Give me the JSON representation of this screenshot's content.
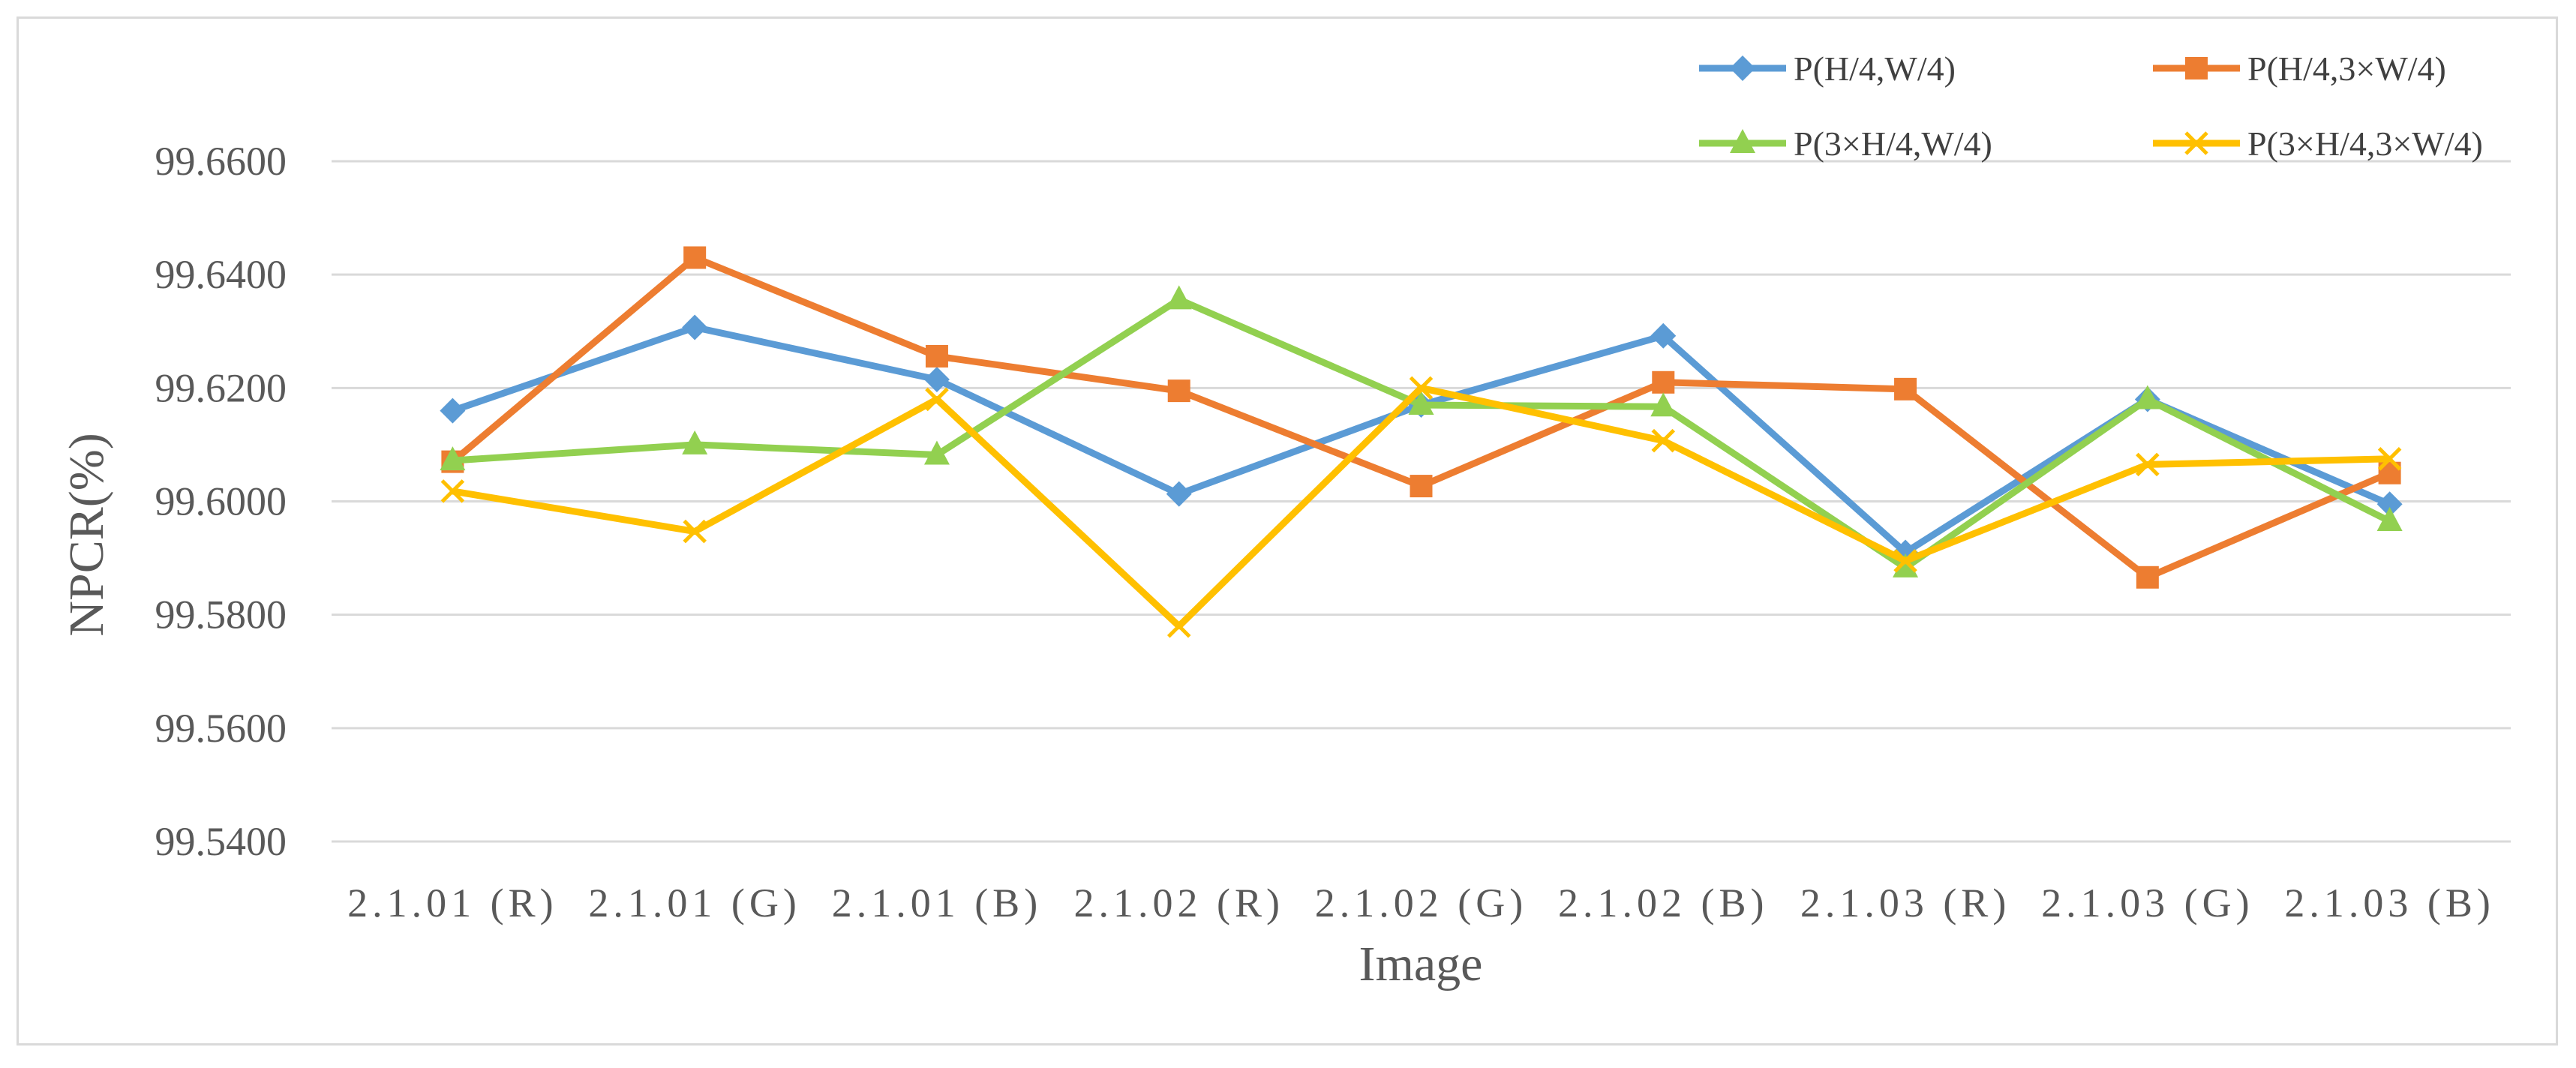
{
  "chart_data": {
    "type": "line",
    "title": "",
    "xlabel": "Image",
    "ylabel": "NPCR(%)",
    "categories": [
      "2.1.01 (R)",
      "2.1.01 (G)",
      "2.1.01 (B)",
      "2.1.02 (R)",
      "2.1.02 (G)",
      "2.1.02 (B)",
      "2.1.03 (R)",
      "2.1.03 (G)",
      "2.1.03 (B)"
    ],
    "category_tick_labels": [
      "2.1.01 (R)",
      "2.1.01 (G)",
      "2.1.01 (B)",
      "2.1.02 (R)",
      "2.1.02 (G)",
      "2.1.02 (B)",
      "2.1.03 (R)",
      "2.1.03 (G)",
      "2.1.03 (B)"
    ],
    "y_tick_labels": [
      "99.5400",
      "99.5600",
      "99.5800",
      "99.6000",
      "99.6200",
      "99.6400",
      "99.6600"
    ],
    "ylim": [
      99.54,
      99.66
    ],
    "y_tick_step": 0.02,
    "grid": true,
    "legend_placement": "top-right",
    "series": [
      {
        "name": "P(H/4,W/4)",
        "color": "#5b9bd5",
        "marker": "diamond",
        "values": [
          99.616,
          99.6307,
          99.6215,
          99.6013,
          99.617,
          99.6292,
          99.591,
          99.618,
          99.5995
        ]
      },
      {
        "name": "P(H/4,3×W/4)",
        "color": "#ed7d31",
        "marker": "square",
        "values": [
          99.607,
          99.643,
          99.6256,
          99.6195,
          99.6027,
          99.621,
          99.6198,
          99.5866,
          99.605
        ]
      },
      {
        "name": "P(3×H/4,W/4)",
        "color": "#92d050",
        "marker": "triangle",
        "values": [
          99.6072,
          99.61,
          99.6082,
          99.6356,
          99.617,
          99.6167,
          99.5883,
          99.618,
          99.5965
        ]
      },
      {
        "name": "P(3×H/4,3×W/4)",
        "color": "#ffc000",
        "marker": "x",
        "values": [
          99.6018,
          99.5947,
          99.618,
          99.578,
          99.62,
          99.6107,
          99.5895,
          99.6065,
          99.6075
        ]
      }
    ]
  }
}
